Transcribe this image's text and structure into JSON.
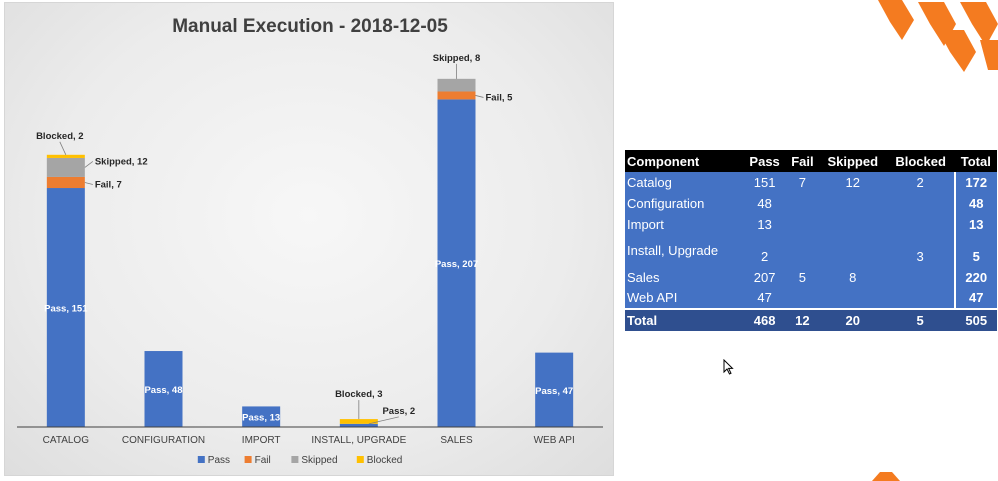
{
  "chart_data": {
    "type": "bar",
    "stacked": true,
    "title": "Manual Execution - 2018-12-05",
    "categories": [
      "CATALOG",
      "CONFIGURATION",
      "IMPORT",
      "INSTALL, UPGRADE",
      "SALES",
      "WEB API"
    ],
    "series": [
      {
        "name": "Pass",
        "color": "#4472c4",
        "values": [
          151,
          48,
          13,
          2,
          207,
          47
        ]
      },
      {
        "name": "Fail",
        "color": "#ed7d31",
        "values": [
          7,
          0,
          0,
          0,
          5,
          0
        ]
      },
      {
        "name": "Skipped",
        "color": "#a5a5a5",
        "values": [
          12,
          0,
          0,
          0,
          8,
          0
        ]
      },
      {
        "name": "Blocked",
        "color": "#ffc000",
        "values": [
          2,
          0,
          0,
          3,
          0,
          0
        ]
      }
    ],
    "data_labels": [
      {
        "category": "CATALOG",
        "series": "Pass",
        "text": "Pass, 151"
      },
      {
        "category": "CATALOG",
        "series": "Fail",
        "text": "Fail, 7"
      },
      {
        "category": "CATALOG",
        "series": "Skipped",
        "text": "Skipped, 12"
      },
      {
        "category": "CATALOG",
        "series": "Blocked",
        "text": "Blocked, 2"
      },
      {
        "category": "CONFIGURATION",
        "series": "Pass",
        "text": "Pass, 48"
      },
      {
        "category": "IMPORT",
        "series": "Pass",
        "text": "Pass, 13"
      },
      {
        "category": "INSTALL, UPGRADE",
        "series": "Pass",
        "text": "Pass, 2"
      },
      {
        "category": "INSTALL, UPGRADE",
        "series": "Blocked",
        "text": "Blocked, 3"
      },
      {
        "category": "SALES",
        "series": "Pass",
        "text": "Pass, 207"
      },
      {
        "category": "SALES",
        "series": "Fail",
        "text": "Fail, 5"
      },
      {
        "category": "SALES",
        "series": "Skipped",
        "text": "Skipped, 8"
      },
      {
        "category": "WEB API",
        "series": "Pass",
        "text": "Pass, 47"
      }
    ],
    "legend": [
      "Pass",
      "Fail",
      "Skipped",
      "Blocked"
    ],
    "legend_position": "bottom",
    "ylim": [
      0,
      230
    ],
    "grid": false
  },
  "table": {
    "headers": [
      "Component",
      "Pass",
      "Fail",
      "Skipped",
      "Blocked",
      "Total"
    ],
    "rows": [
      {
        "component": "Catalog",
        "pass": "151",
        "fail": "7",
        "skipped": "12",
        "blocked": "2",
        "total": "172"
      },
      {
        "component": "Configuration",
        "pass": "48",
        "fail": "",
        "skipped": "",
        "blocked": "",
        "total": "48"
      },
      {
        "component": "Import",
        "pass": "13",
        "fail": "",
        "skipped": "",
        "blocked": "",
        "total": "13"
      },
      {
        "component": "Install, Upgrade",
        "pass": "2",
        "fail": "",
        "skipped": "",
        "blocked": "3",
        "total": "5"
      },
      {
        "component": "Sales",
        "pass": "207",
        "fail": "5",
        "skipped": "8",
        "blocked": "",
        "total": "220"
      },
      {
        "component": "Web API",
        "pass": "47",
        "fail": "",
        "skipped": "",
        "blocked": "",
        "total": "47"
      }
    ],
    "total_row": {
      "label": "Total",
      "pass": "468",
      "fail": "12",
      "skipped": "20",
      "blocked": "5",
      "total": "505"
    }
  },
  "theme": {
    "accent": "#f47b20",
    "table_header": "#000000",
    "table_body": "#4472c4",
    "table_total": "#2f4f8f"
  }
}
